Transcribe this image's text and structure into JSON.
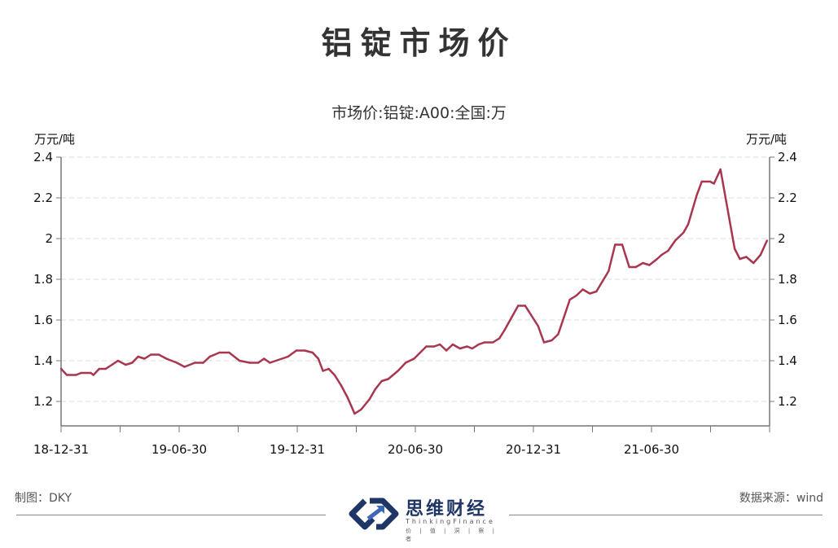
{
  "title": "铝锭市场价",
  "footer": {
    "author": "制图：DKY",
    "source": "数据来源：wind"
  },
  "logo": {
    "name_cn": "思维财经",
    "name_en": "ThinkingFinance",
    "slogan": "价 | 值 | 洞 | 察 | 者",
    "colors": [
      "#1f3565",
      "#3d68b8"
    ]
  },
  "chart_data": {
    "type": "line",
    "title": "市场价:铝锭:A00:全国:万",
    "ylabel_left": "万元/吨",
    "ylabel_right": "万元/吨",
    "ylim": [
      1.08,
      2.4
    ],
    "yticks": [
      1.2,
      1.4,
      1.6,
      1.8,
      2,
      2.2,
      2.4
    ],
    "xlim": [
      "2018-12-31",
      "2021-12-31"
    ],
    "xtick_labels": [
      "18-12-31",
      "19-06-30",
      "19-12-31",
      "20-06-30",
      "20-12-31",
      "21-06-30"
    ],
    "grid": "horizontal dashed",
    "line_color": "#a8364f",
    "series": [
      {
        "x": [
          "2018-12-31",
          "2019-01-09",
          "2019-01-23",
          "2019-01-31",
          "2019-02-15",
          "2019-02-19",
          "2019-02-28",
          "2019-03-10",
          "2019-03-29",
          "2019-04-10",
          "2019-04-20",
          "2019-04-29",
          "2019-05-09",
          "2019-05-19",
          "2019-05-31",
          "2019-06-12",
          "2019-06-28",
          "2019-07-10",
          "2019-07-26",
          "2019-08-08",
          "2019-08-18",
          "2019-09-02",
          "2019-09-17",
          "2019-10-03",
          "2019-10-19",
          "2019-11-01",
          "2019-11-10",
          "2019-11-19",
          "2019-12-17",
          "2019-12-30",
          "2020-01-12",
          "2020-01-24",
          "2020-02-02",
          "2020-02-09",
          "2020-02-18",
          "2020-02-27",
          "2020-03-08",
          "2020-03-18",
          "2020-03-29",
          "2020-04-08",
          "2020-04-21",
          "2020-04-30",
          "2020-05-10",
          "2020-05-20",
          "2020-06-04",
          "2020-06-16",
          "2020-06-29",
          "2020-07-18",
          "2020-07-30",
          "2020-08-08",
          "2020-08-18",
          "2020-08-28",
          "2020-09-08",
          "2020-09-19",
          "2020-09-27",
          "2020-10-07",
          "2020-10-16",
          "2020-10-29",
          "2020-11-08",
          "2020-11-16",
          "2020-12-07",
          "2020-12-18",
          "2021-01-07",
          "2021-01-16",
          "2021-01-28",
          "2021-02-07",
          "2021-02-25",
          "2021-03-07",
          "2021-03-17",
          "2021-03-28",
          "2021-04-07",
          "2021-04-26",
          "2021-05-06",
          "2021-05-17",
          "2021-05-28",
          "2021-06-07",
          "2021-06-18",
          "2021-06-28",
          "2021-07-10",
          "2021-07-17",
          "2021-07-27",
          "2021-08-07",
          "2021-08-20",
          "2021-08-27",
          "2021-09-09",
          "2021-09-17",
          "2021-09-30",
          "2021-10-06",
          "2021-10-16",
          "2021-11-07",
          "2021-11-15",
          "2021-11-25",
          "2021-12-06",
          "2021-12-17",
          "2021-12-27"
        ],
        "y": [
          1.36,
          1.33,
          1.33,
          1.34,
          1.34,
          1.33,
          1.36,
          1.36,
          1.4,
          1.38,
          1.39,
          1.42,
          1.41,
          1.43,
          1.43,
          1.41,
          1.39,
          1.37,
          1.39,
          1.39,
          1.42,
          1.44,
          1.44,
          1.4,
          1.39,
          1.39,
          1.41,
          1.39,
          1.42,
          1.45,
          1.45,
          1.44,
          1.41,
          1.35,
          1.36,
          1.33,
          1.28,
          1.22,
          1.14,
          1.16,
          1.21,
          1.26,
          1.3,
          1.31,
          1.35,
          1.39,
          1.41,
          1.47,
          1.47,
          1.48,
          1.45,
          1.48,
          1.46,
          1.47,
          1.46,
          1.48,
          1.49,
          1.49,
          1.51,
          1.55,
          1.67,
          1.67,
          1.57,
          1.49,
          1.5,
          1.53,
          1.7,
          1.72,
          1.75,
          1.73,
          1.74,
          1.84,
          1.97,
          1.97,
          1.86,
          1.86,
          1.88,
          1.87,
          1.9,
          1.92,
          1.94,
          1.99,
          2.03,
          2.07,
          2.21,
          2.28,
          2.28,
          2.27,
          2.34,
          1.95,
          1.9,
          1.91,
          1.88,
          1.92,
          1.99
        ]
      }
    ]
  }
}
